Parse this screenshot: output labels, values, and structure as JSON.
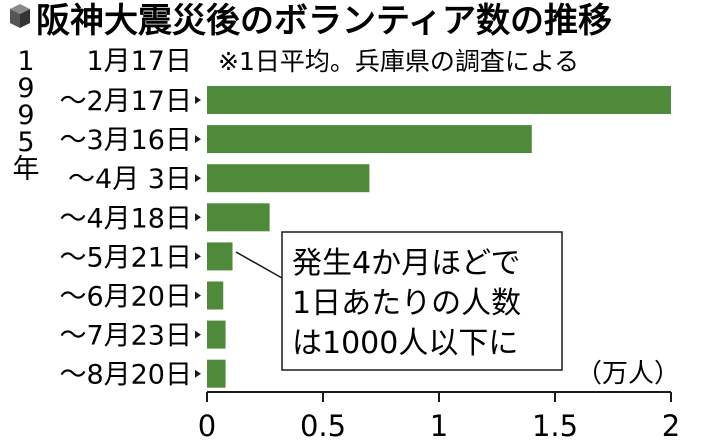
{
  "header": {
    "title": "阪神大震災後のボランティア数の推移",
    "note": "※1日平均。兵庫県の調査による"
  },
  "year_label": [
    "1",
    "9",
    "9",
    "5",
    "年"
  ],
  "callout": {
    "lines": [
      "発生4か月ほどで",
      "1日あたりの人数",
      "は1000人以下に"
    ]
  },
  "colors": {
    "bar": "#4e8a3a",
    "text": "#1a1a1a",
    "icon": "#555555"
  },
  "chart_data": {
    "type": "bar",
    "orientation": "horizontal",
    "title": "阪神大震災後のボランティア数の推移",
    "unit": "（万人）",
    "first_label": "1月17日",
    "categories": [
      "～2月17日",
      "～3月16日",
      "～4月 3日",
      "～4月18日",
      "～5月21日",
      "～6月20日",
      "～7月23日",
      "～8月20日"
    ],
    "values": [
      2.0,
      1.4,
      0.7,
      0.27,
      0.11,
      0.07,
      0.08,
      0.08
    ],
    "xlim": [
      0,
      2
    ],
    "xticks": [
      0,
      0.5,
      1,
      1.5,
      2
    ],
    "xtick_labels": [
      "0",
      "0.5",
      "1",
      "1.5",
      "2"
    ],
    "grid": false,
    "legend": "none"
  }
}
